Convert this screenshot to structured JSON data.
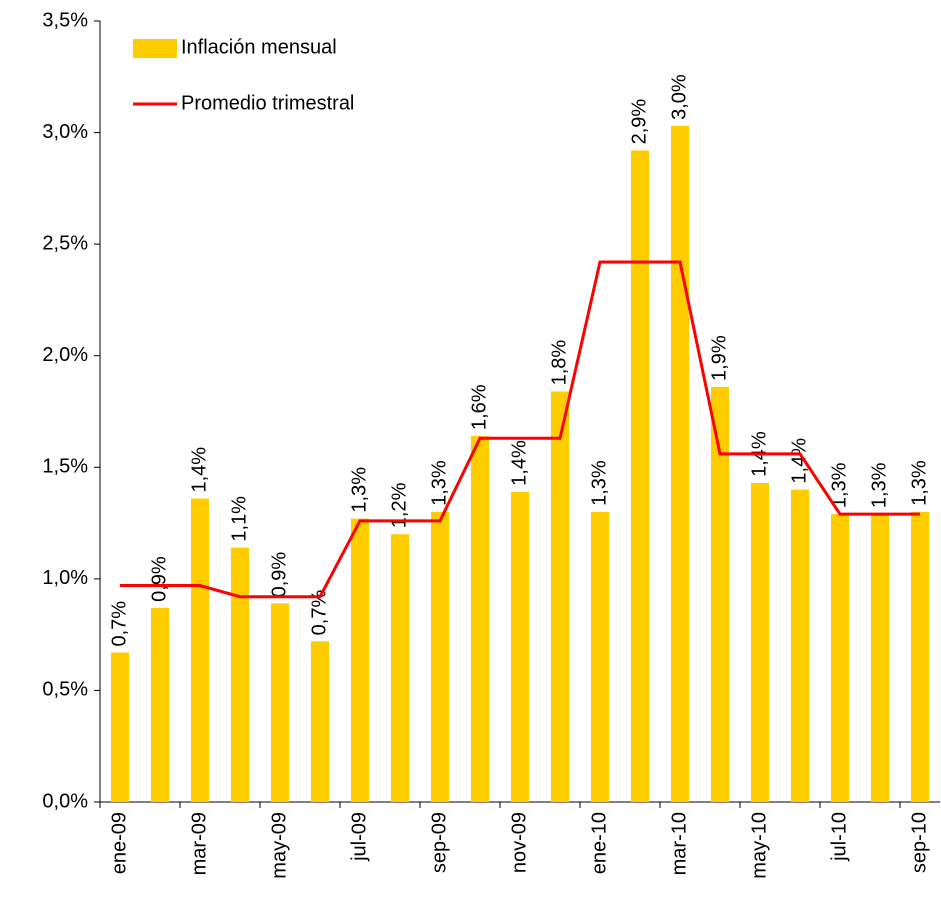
{
  "chart_data": {
    "type": "bar",
    "categories": [
      "ene-09",
      null,
      "mar-09",
      null,
      "may-09",
      null,
      "jul-09",
      null,
      "sep-09",
      null,
      "nov-09",
      null,
      "ene-10",
      null,
      "mar-10",
      null,
      "may-10",
      null,
      "jul-10",
      null,
      "sep-10"
    ],
    "series": [
      {
        "name": "Inflación mensual",
        "type": "bar",
        "color": "#FFCC00",
        "values": [
          0.67,
          0.87,
          1.36,
          1.14,
          0.89,
          0.72,
          1.27,
          1.2,
          1.3,
          1.64,
          1.39,
          1.84,
          1.3,
          2.92,
          3.03,
          1.86,
          1.43,
          1.4,
          1.29,
          1.29,
          1.3
        ],
        "value_labels": [
          "0,7%",
          "0,9%",
          "1,4%",
          "1,1%",
          "0,9%",
          "0,7%",
          "1,3%",
          "1,2%",
          "1,3%",
          "1,6%",
          "1,4%",
          "1,8%",
          "1,3%",
          "2,9%",
          "3,0%",
          "1,9%",
          "1,4%",
          "1,4%",
          "1,3%",
          "1,3%",
          "1,3%"
        ]
      },
      {
        "name": "Promedio trimestral",
        "type": "line",
        "color": "#FF0000",
        "values": [
          0.97,
          0.97,
          0.97,
          0.92,
          0.92,
          0.92,
          1.26,
          1.26,
          1.26,
          1.63,
          1.63,
          1.63,
          2.42,
          2.42,
          2.42,
          1.56,
          1.56,
          1.56,
          1.29,
          1.29,
          1.29
        ]
      }
    ],
    "ylim": [
      0,
      3.5
    ],
    "yticks": [
      {
        "value": 0,
        "label": "0,0%"
      },
      {
        "value": 0.5,
        "label": "0,5%"
      },
      {
        "value": 1,
        "label": "1,0%"
      },
      {
        "value": 1.5,
        "label": "1,5%"
      },
      {
        "value": 2,
        "label": "2,0%"
      },
      {
        "value": 2.5,
        "label": "2,5%"
      },
      {
        "value": 3,
        "label": "3,0%"
      },
      {
        "value": 3.5,
        "label": "3,5%"
      }
    ],
    "legend": "top-left"
  }
}
